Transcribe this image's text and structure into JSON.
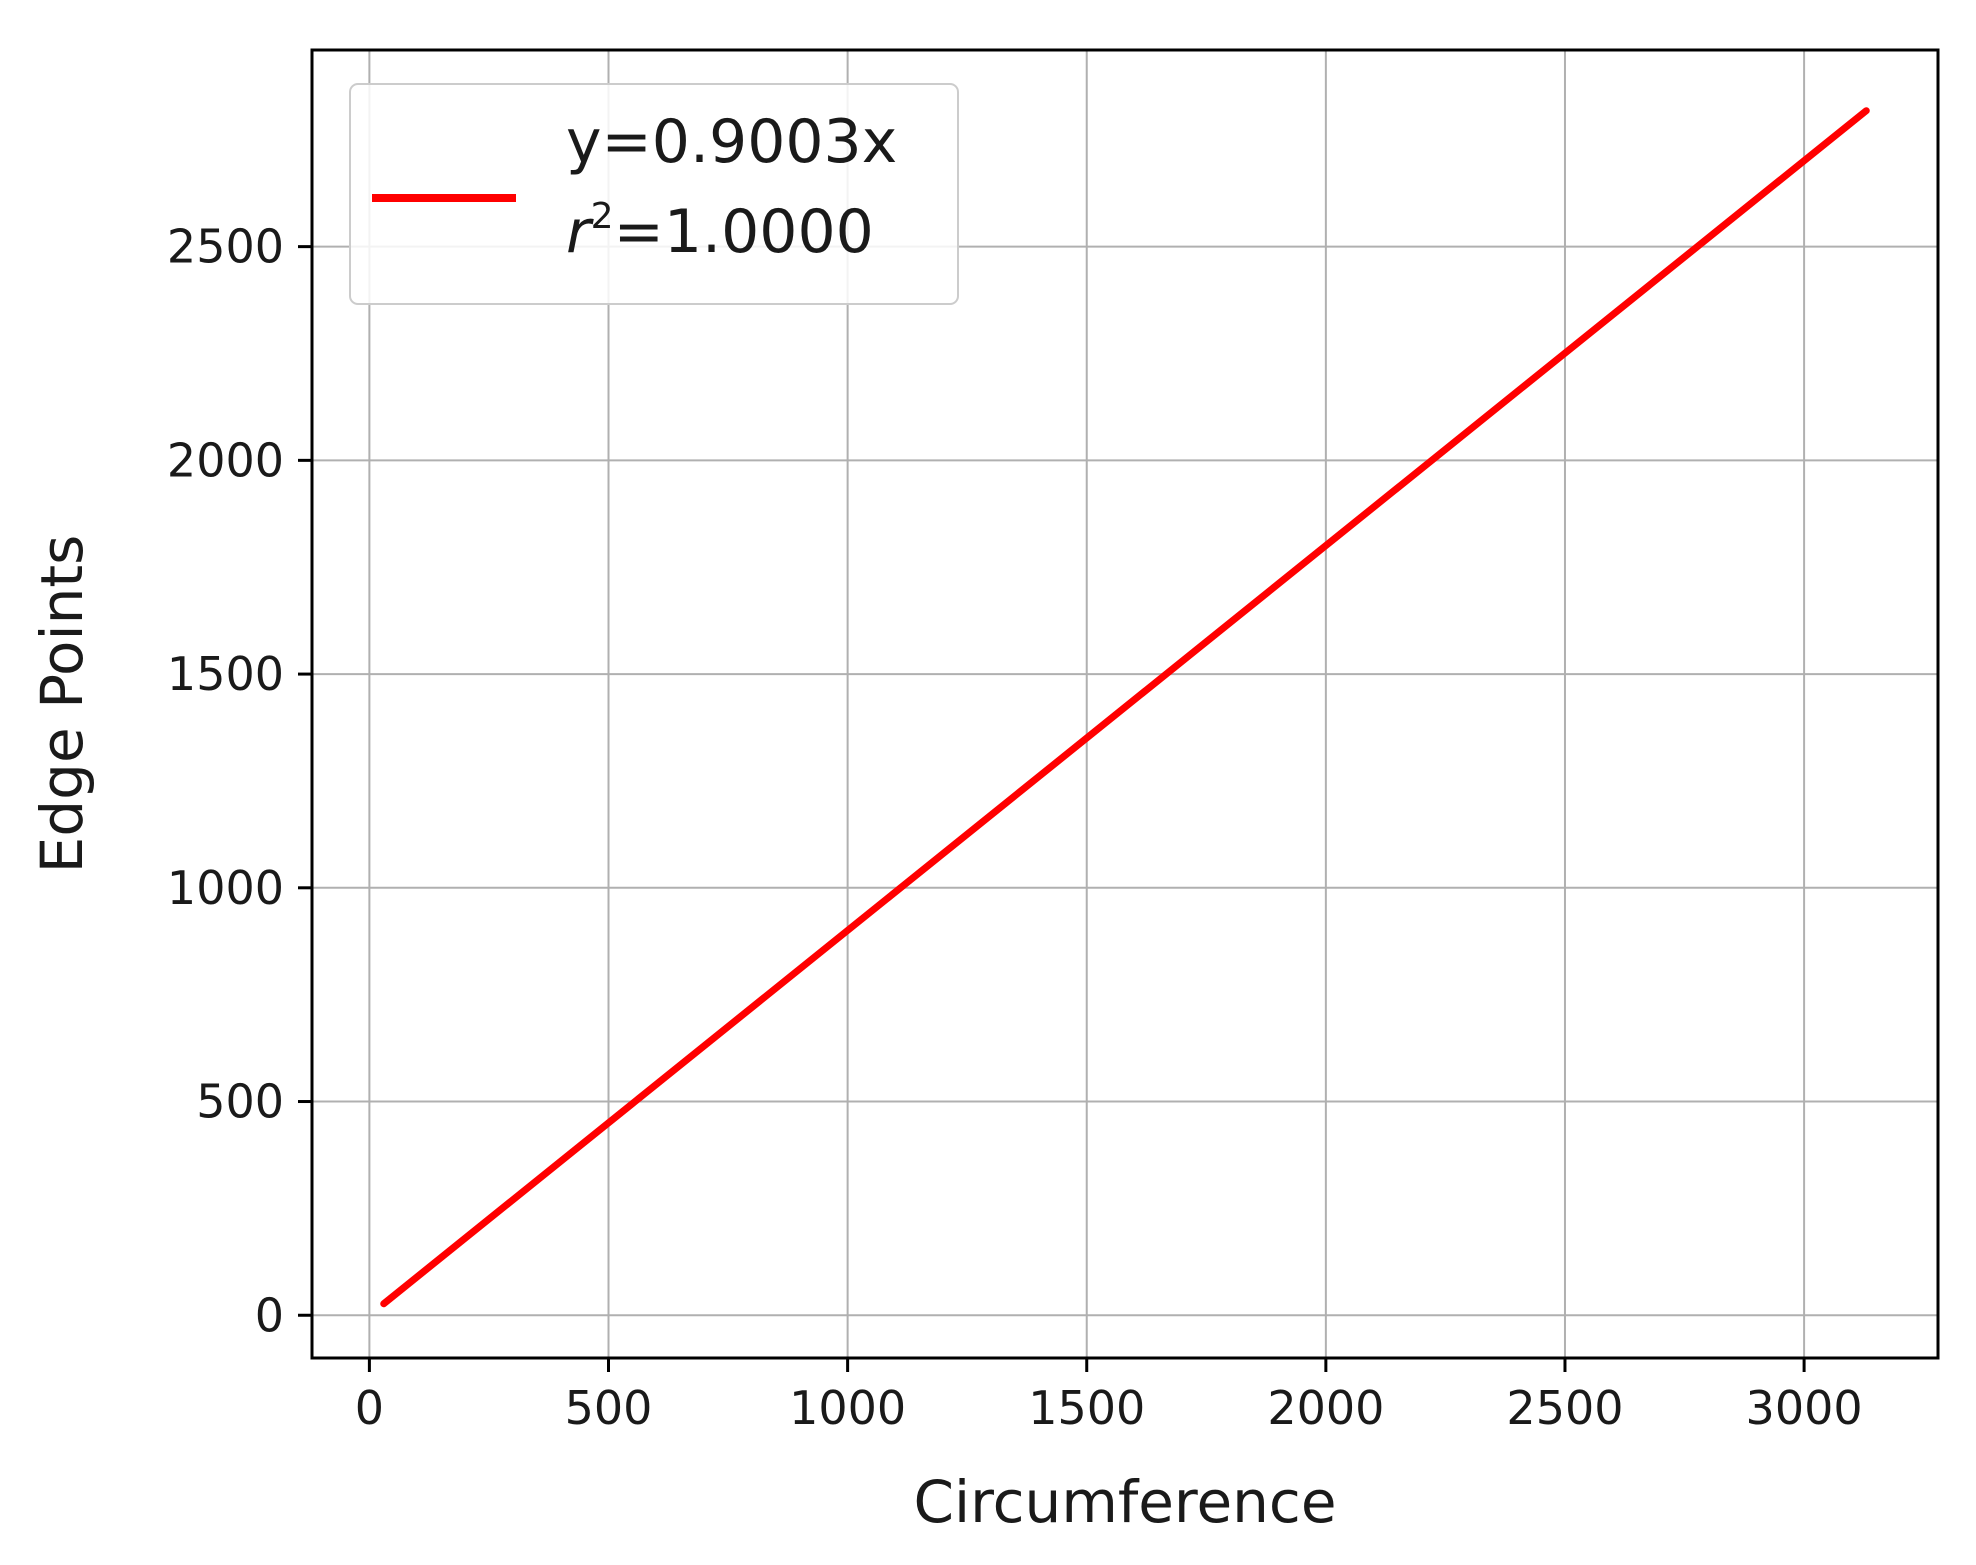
{
  "chart_data": {
    "type": "line",
    "title": "",
    "xlabel": "Circumference",
    "ylabel": "Edge Points",
    "xlim": [
      -120,
      3280
    ],
    "ylim": [
      -100,
      2960
    ],
    "x_ticks": [
      0,
      500,
      1000,
      1500,
      2000,
      2500,
      3000
    ],
    "y_ticks": [
      0,
      500,
      1000,
      1500,
      2000,
      2500
    ],
    "x_tick_labels": [
      "0",
      "500",
      "1000",
      "1500",
      "2000",
      "2500",
      "3000"
    ],
    "y_tick_labels": [
      "0",
      "500",
      "1000",
      "1500",
      "2000",
      "2500"
    ],
    "grid": true,
    "legend_position": "top-left",
    "series": [
      {
        "equation_label": "y=0.9003x",
        "r2_symbol": "r",
        "r2_exponent": "2",
        "r2_value": "=1.0000",
        "color": "#ff0000",
        "x": [
          30,
          3130
        ],
        "y": [
          27,
          2818
        ]
      }
    ]
  },
  "colors": {
    "grid": "#b0b0b0",
    "axes": "#000000",
    "line": "#ff0000",
    "legend_border": "#cccccc"
  }
}
